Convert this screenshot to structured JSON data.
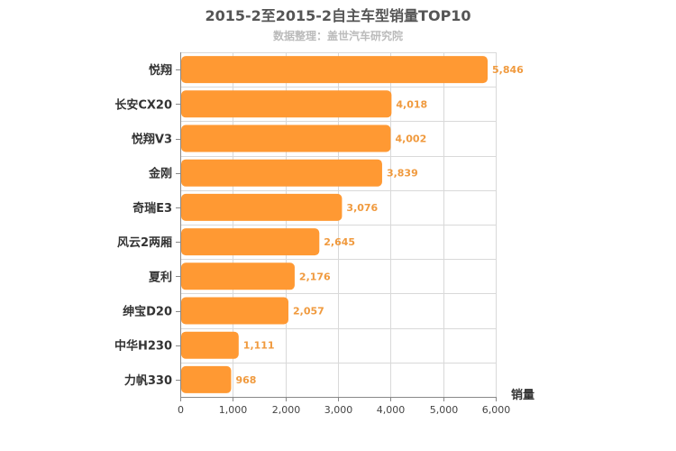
{
  "chart_data": {
    "type": "bar",
    "orientation": "horizontal",
    "title": "2015-2至2015-2自主车型销量TOP10",
    "subtitle": "数据整理：盖世汽车研究院",
    "xlabel": "销量",
    "ylabel": "",
    "categories": [
      "悦翔",
      "长安CX20",
      "悦翔V3",
      "金刚",
      "奇瑞E3",
      "风云2两厢",
      "夏利",
      "绅宝D20",
      "中华H230",
      "力帆330"
    ],
    "values": [
      5846,
      4018,
      4002,
      3839,
      3076,
      2645,
      2176,
      2057,
      1111,
      968
    ],
    "value_labels": [
      "5,846",
      "4,018",
      "4,002",
      "3,839",
      "3,076",
      "2,645",
      "2,176",
      "2,057",
      "1,111",
      "968"
    ],
    "xlim": [
      0,
      6000
    ],
    "ticks": [
      0,
      1000,
      2000,
      3000,
      4000,
      5000,
      6000
    ],
    "tick_labels": [
      "0",
      "1,000",
      "2,000",
      "3,000",
      "4,000",
      "5,000",
      "6,000"
    ],
    "grid": true,
    "bar_color": "#ff9933",
    "label_color": "#f09a3e"
  }
}
